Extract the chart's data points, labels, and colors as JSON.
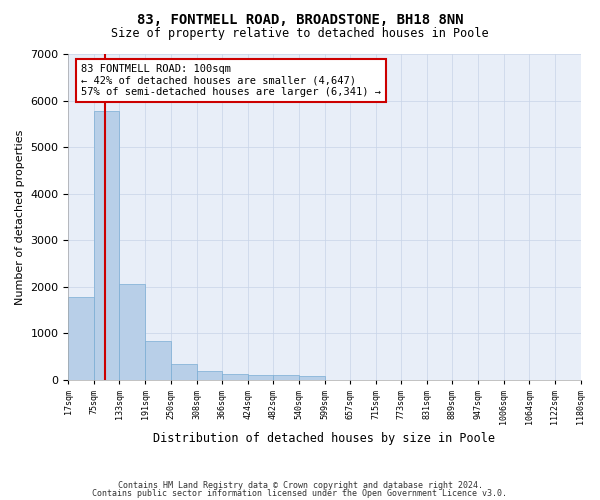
{
  "title": "83, FONTMELL ROAD, BROADSTONE, BH18 8NN",
  "subtitle": "Size of property relative to detached houses in Poole",
  "xlabel": "Distribution of detached houses by size in Poole",
  "ylabel": "Number of detached properties",
  "annotation_line1": "83 FONTMELL ROAD: 100sqm",
  "annotation_line2": "← 42% of detached houses are smaller (4,647)",
  "annotation_line3": "57% of semi-detached houses are larger (6,341) →",
  "property_size": 100,
  "bin_edges": [
    17,
    75,
    133,
    191,
    250,
    308,
    366,
    424,
    482,
    540,
    599,
    657,
    715,
    773,
    831,
    889,
    947,
    1006,
    1064,
    1122,
    1180
  ],
  "bin_counts": [
    1780,
    5780,
    2060,
    820,
    340,
    190,
    115,
    100,
    90,
    70,
    0,
    0,
    0,
    0,
    0,
    0,
    0,
    0,
    0,
    0
  ],
  "bar_color": "#b8cfe8",
  "bar_edge_color": "#7aadd4",
  "vline_color": "#cc0000",
  "annotation_box_color": "#cc0000",
  "grid_color": "#c8d4e8",
  "background_color": "#e8eef8",
  "footer_line1": "Contains HM Land Registry data © Crown copyright and database right 2024.",
  "footer_line2": "Contains public sector information licensed under the Open Government Licence v3.0.",
  "ylim": [
    0,
    7000
  ],
  "yticks": [
    0,
    1000,
    2000,
    3000,
    4000,
    5000,
    6000,
    7000
  ],
  "figsize": [
    6.0,
    5.0
  ],
  "dpi": 100
}
